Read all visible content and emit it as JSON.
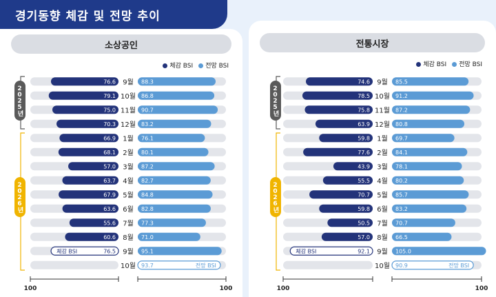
{
  "title": "경기동향 체감 및 전망 추이",
  "colors": {
    "actual": "#23337a",
    "forecast": "#5b9bd5",
    "track": "#e3e5ea",
    "year2025": "#5a5a5a",
    "year2026": "#f0b400"
  },
  "icons": {
    "legend_marker": "circle-dot"
  },
  "legend": {
    "actual": "체감 BSI",
    "forecast": "전망 BSI"
  },
  "year_labels": {
    "y2025": "2025년",
    "y2026": "2026년"
  },
  "chart_data": [
    {
      "type": "bar",
      "title": "소상공인",
      "categories": [
        "9월",
        "10월",
        "11월",
        "12월",
        "1월",
        "2월",
        "3월",
        "4월",
        "5월",
        "6월",
        "7월",
        "8월",
        "9월",
        "10월"
      ],
      "series": [
        {
          "name": "체감 BSI",
          "values": [
            76.6,
            79.1,
            75.0,
            70.3,
            66.9,
            68.1,
            57.0,
            63.7,
            67.9,
            63.6,
            55.6,
            60.6,
            76.5,
            null
          ]
        },
        {
          "name": "전망 BSI",
          "values": [
            88.3,
            86.8,
            90.7,
            83.2,
            76.1,
            80.1,
            87.2,
            82.7,
            84.8,
            82.8,
            77.3,
            71.0,
            95.1,
            93.7
          ]
        }
      ],
      "axis_labels": [
        "100",
        "100"
      ],
      "inline_labels": {
        "actual": "체감 BSI",
        "forecast": "전망 BSI"
      }
    },
    {
      "type": "bar",
      "title": "전통시장",
      "categories": [
        "9월",
        "10월",
        "11월",
        "12월",
        "1월",
        "2월",
        "3월",
        "4월",
        "5월",
        "6월",
        "7월",
        "8월",
        "9월",
        "10월"
      ],
      "series": [
        {
          "name": "체감 BSI",
          "values": [
            74.6,
            78.5,
            75.8,
            63.9,
            59.8,
            77.6,
            43.9,
            55.5,
            70.7,
            59.8,
            50.5,
            57.0,
            92.1,
            null
          ]
        },
        {
          "name": "전망 BSI",
          "values": [
            85.5,
            91.2,
            87.2,
            80.8,
            69.7,
            84.1,
            78.1,
            80.2,
            85.7,
            83.2,
            70.7,
            66.5,
            105.0,
            90.9
          ]
        }
      ],
      "axis_labels": [
        "100",
        "100"
      ],
      "inline_labels": {
        "actual": "체감 BSI",
        "forecast": "전망 BSI"
      }
    }
  ]
}
